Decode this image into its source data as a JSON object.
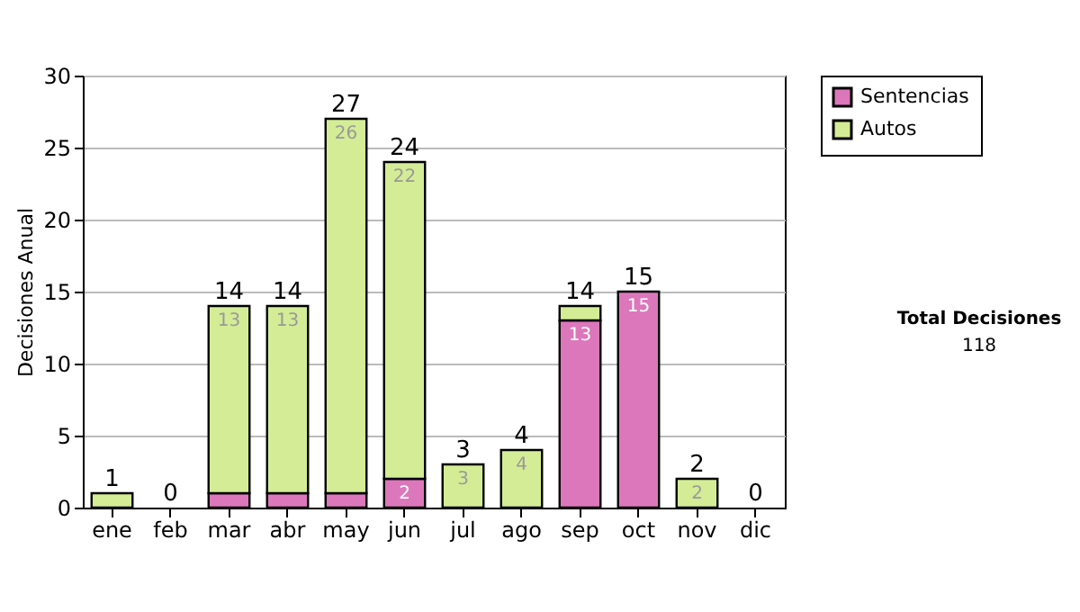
{
  "chart_data": {
    "type": "bar",
    "stacked": true,
    "ylabel": "Decisiones Anual",
    "categories": [
      "ene",
      "feb",
      "mar",
      "abr",
      "may",
      "jun",
      "jul",
      "ago",
      "sep",
      "oct",
      "nov",
      "dic"
    ],
    "series": [
      {
        "name": "Sentencias",
        "color": "#dd77bb",
        "values": [
          0,
          0,
          1,
          1,
          1,
          2,
          0,
          0,
          13,
          15,
          0,
          0
        ],
        "value_labels": [
          null,
          null,
          null,
          null,
          null,
          "2",
          null,
          null,
          "13",
          "15",
          null,
          null
        ]
      },
      {
        "name": "Autos",
        "color": "#d4ec96",
        "values": [
          1,
          0,
          13,
          13,
          26,
          22,
          3,
          4,
          1,
          0,
          2,
          0
        ],
        "value_labels": [
          null,
          null,
          "13",
          "13",
          "26",
          "22",
          "3",
          "4",
          null,
          null,
          "2",
          null
        ]
      }
    ],
    "totals": [
      "1",
      "0",
      "14",
      "14",
      "27",
      "24",
      "3",
      "4",
      "14",
      "15",
      "2",
      "0"
    ],
    "ylim": [
      0,
      30
    ],
    "yticks": [
      0,
      5,
      10,
      15,
      20,
      25,
      30
    ],
    "grid": "y",
    "legend": "right",
    "annotations": [
      "Total Decisiones",
      "118"
    ]
  }
}
